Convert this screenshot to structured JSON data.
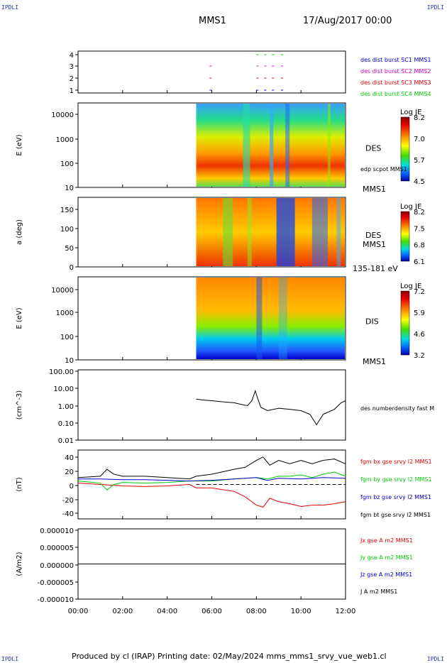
{
  "corner_labels": {
    "top_left": "IPDLI",
    "top_right": "IPDLI",
    "bottom_left": "IPDLI",
    "bottom_right": "IPDLI"
  },
  "header": {
    "spacecraft": "MMS1",
    "date": "17/Aug/2017 00:00"
  },
  "footer": {
    "text": "Produced by cl (IRAP)   Printing date: 02/May/2024   mms_mms1_srvy_vue_web1.cl"
  },
  "time_axis": {
    "labels": [
      "00:00",
      "02:00",
      "04:00",
      "06:00",
      "08:00",
      "10:00",
      "12:00"
    ]
  },
  "colors": {
    "red": "#e00000",
    "green": "#00cc00",
    "blue": "#0000cc",
    "magenta": "#cc00cc",
    "black": "#000000"
  },
  "chart_data": [
    {
      "type": "scatter",
      "id": "availability",
      "yticks": [
        "4",
        "3",
        "2",
        "1"
      ],
      "legend": [
        {
          "label": "des dist burst SC1 MMS1",
          "color": "#0000cc"
        },
        {
          "label": "des dist burst SC2 MMS2",
          "color": "#cc00cc"
        },
        {
          "label": "des dist burst SC3 MMS3",
          "color": "#e00000"
        },
        {
          "label": "des dist burst SC4 MMS4",
          "color": "#00cc00"
        }
      ]
    },
    {
      "type": "heatmap",
      "id": "des-energy",
      "ylabel": "E (eV)",
      "yticks": [
        "10000",
        "1000",
        "100",
        "10"
      ],
      "colorbar": {
        "title": "Log JE",
        "ticks": [
          "8.2",
          "7.0",
          "5.7",
          "4.5"
        ]
      },
      "label": "DES",
      "annotation": "edp scpot MMS1",
      "bottom_label": "MMS1"
    },
    {
      "type": "heatmap",
      "id": "des-pitch",
      "ylabel": "a (deg)",
      "yticks": [
        "150",
        "100",
        "50",
        "0"
      ],
      "colorbar": {
        "title": "Log JE",
        "ticks": [
          "8.2",
          "7.5",
          "6.8",
          "6.1"
        ]
      },
      "label": "DES",
      "label2": "MMS1",
      "bottom_label": "135-181 eV"
    },
    {
      "type": "heatmap",
      "id": "dis-energy",
      "ylabel": "E (eV)",
      "yticks": [
        "10000",
        "1000",
        "100",
        "10"
      ],
      "colorbar": {
        "title": "Log JE",
        "ticks": [
          "7.2",
          "5.9",
          "4.6",
          "3.2"
        ]
      },
      "label": "DIS",
      "bottom_label": "MMS1"
    },
    {
      "type": "line",
      "id": "density",
      "ylabel": "(cm^-3)",
      "yticks": [
        "100.00",
        "10.00",
        "1.00",
        "0.10",
        "0.01"
      ],
      "legend": [
        {
          "label": "des numberdensity fast M",
          "color": "#000000"
        }
      ],
      "series": [
        {
          "x_hours": [
            5.3,
            5.6,
            6.0,
            6.5,
            7.0,
            7.3,
            7.6,
            7.8,
            7.95,
            8.05,
            8.2,
            8.5,
            9.0,
            9.5,
            10.0,
            10.4,
            10.7,
            11.0,
            11.5,
            11.8,
            12.0
          ],
          "y": [
            2.5,
            2.2,
            2.0,
            1.7,
            1.5,
            1.2,
            1.0,
            2.0,
            8.0,
            3.0,
            0.8,
            0.5,
            0.7,
            0.6,
            0.5,
            0.3,
            0.07,
            0.3,
            0.6,
            1.5,
            2.0
          ]
        }
      ]
    },
    {
      "type": "line",
      "id": "magnetic-field",
      "ylabel": "(nT)",
      "yticks": [
        "40",
        "20",
        "0",
        "-20",
        "-40"
      ],
      "ylim": [
        -50,
        50
      ],
      "legend": [
        {
          "label": "fgm bx gse srvy l2 MMS1",
          "color": "#e00000"
        },
        {
          "label": "fgm by gse srvy l2 MMS1",
          "color": "#00cc00"
        },
        {
          "label": "fgm bz gse srvy l2 MMS1",
          "color": "#0000cc"
        },
        {
          "label": "fgm bt gse srvy l2 MMS1",
          "color": "#000000"
        }
      ],
      "series": [
        {
          "name": "bt",
          "color": "#000000",
          "x_hours": [
            0,
            1,
            1.3,
            1.6,
            2,
            3,
            4,
            5,
            5.3,
            6,
            7,
            7.5,
            8,
            8.3,
            8.6,
            9,
            9.5,
            10,
            10.5,
            11,
            11.5,
            12
          ],
          "y": [
            10,
            12,
            22,
            15,
            12,
            12,
            10,
            8,
            12,
            15,
            22,
            25,
            35,
            40,
            28,
            35,
            30,
            35,
            30,
            35,
            37,
            30
          ]
        },
        {
          "name": "bx",
          "color": "#e00000",
          "x_hours": [
            0,
            1,
            2,
            3,
            4,
            5,
            5.3,
            6,
            7,
            7.5,
            8,
            8.3,
            8.6,
            9,
            9.5,
            10,
            10.5,
            11,
            11.5,
            12
          ],
          "y": [
            2,
            0,
            -2,
            -3,
            -2,
            0,
            -5,
            -5,
            -10,
            -18,
            -30,
            -33,
            -20,
            -25,
            -28,
            -32,
            -30,
            -30,
            -28,
            -25
          ]
        },
        {
          "name": "by",
          "color": "#00cc00",
          "x_hours": [
            0,
            1,
            1.3,
            1.6,
            2,
            3,
            4,
            5,
            5.3,
            6,
            7,
            8,
            8.5,
            9,
            9.5,
            10,
            10.5,
            11,
            11.5,
            12
          ],
          "y": [
            5,
            2,
            -8,
            0,
            3,
            2,
            3,
            5,
            5,
            5,
            8,
            10,
            8,
            12,
            12,
            14,
            10,
            15,
            18,
            12
          ]
        },
        {
          "name": "bz",
          "color": "#0000cc",
          "x_hours": [
            0,
            1,
            2,
            3,
            4,
            5,
            6,
            7,
            8,
            8.5,
            9,
            10,
            11,
            12
          ],
          "y": [
            8,
            8,
            7,
            7,
            6,
            5,
            6,
            8,
            10,
            6,
            9,
            8,
            10,
            9
          ]
        }
      ]
    },
    {
      "type": "line",
      "id": "current-density",
      "ylabel": "(A/m2)",
      "yticks": [
        "0.000010",
        "0.000005",
        "0.000000",
        "-0.000005",
        "-0.000010"
      ],
      "ylim": [
        -1e-05,
        1e-05
      ],
      "legend": [
        {
          "label": "Jx gse A m2 MMS1",
          "color": "#e00000"
        },
        {
          "label": "Jy gse A m2 MMS1",
          "color": "#00cc00"
        },
        {
          "label": "Jz gse A m2 MMS1",
          "color": "#0000cc"
        },
        {
          "label": "J A m2 MMS1",
          "color": "#000000"
        }
      ],
      "series": [
        {
          "name": "J",
          "color": "#000000",
          "x_hours": [
            0,
            12
          ],
          "y": [
            0,
            0
          ]
        }
      ]
    }
  ]
}
